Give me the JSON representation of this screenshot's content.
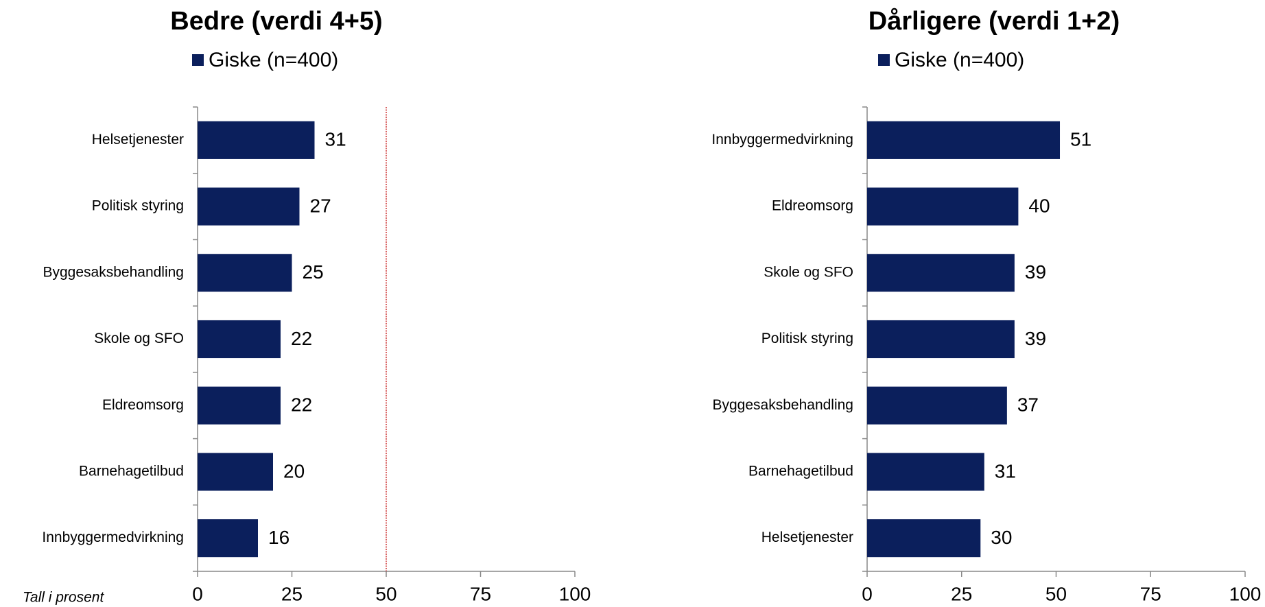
{
  "chart_data": [
    {
      "type": "bar",
      "orientation": "horizontal",
      "title": "Bedre (verdi 4+5)",
      "xlabel": "Tall i prosent",
      "categories": [
        "Helsetjenester",
        "Politisk styring",
        "Byggesaksbehandling",
        "Skole og SFO",
        "Eldreomsorg",
        "Barnehagetilbud",
        "Innbyggermedvirkning"
      ],
      "series": [
        {
          "name": "Giske (n=400)",
          "color": "#0b1f5c",
          "values": [
            31,
            27,
            25,
            22,
            22,
            20,
            16
          ]
        }
      ],
      "xlim": [
        0,
        100
      ],
      "xticks": [
        0,
        25,
        50,
        75,
        100
      ],
      "reference_line": 50,
      "reference_color": "#c00000"
    },
    {
      "type": "bar",
      "orientation": "horizontal",
      "title": "Dårligere (verdi 1+2)",
      "categories": [
        "Innbyggermedvirkning",
        "Eldreomsorg",
        "Skole og SFO",
        "Politisk styring",
        "Byggesaksbehandling",
        "Barnehagetilbud",
        "Helsetjenester"
      ],
      "series": [
        {
          "name": "Giske (n=400)",
          "color": "#0b1f5c",
          "values": [
            51,
            40,
            39,
            39,
            37,
            31,
            30
          ]
        }
      ],
      "xlim": [
        0,
        100
      ],
      "xticks": [
        0,
        25,
        50,
        75,
        100
      ]
    }
  ]
}
